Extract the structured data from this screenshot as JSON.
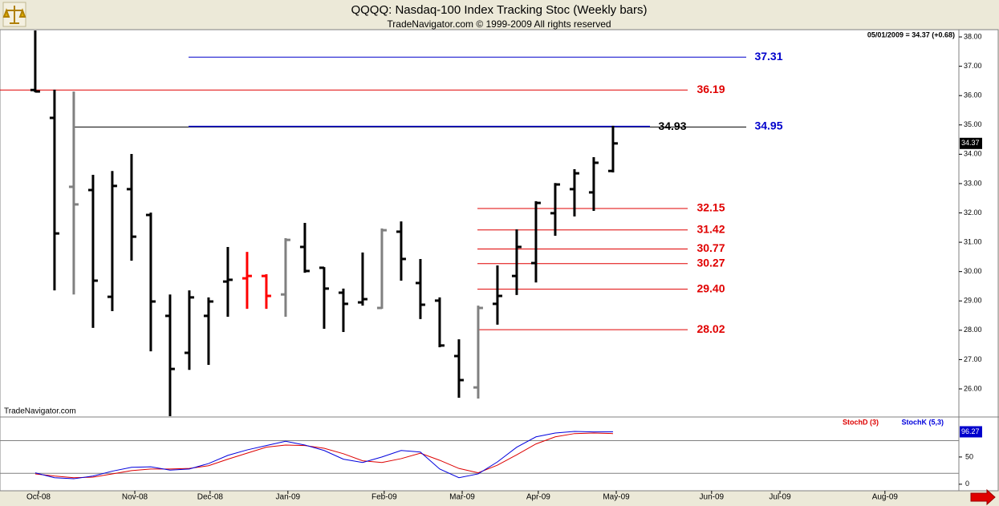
{
  "chart_data": [
    {
      "type": "ohlc",
      "title": "QQQQ:  Nasdaq-100 Index Tracking Stoc  (Weekly bars)",
      "subtitle": "TradeNavigator.com © 1999-2009 All rights reserved",
      "info": "05/01/2009 = 34.37 (+0.68)",
      "source": "TradeNavigator.com",
      "categories": [
        null,
        null,
        null,
        null,
        null,
        null,
        null,
        null,
        null,
        null,
        null,
        null,
        null,
        null,
        null,
        null,
        null,
        null,
        null,
        null,
        null,
        null,
        null,
        null,
        null,
        null,
        null,
        null,
        null,
        null,
        null
      ],
      "open": [
        36.19,
        35.24,
        32.89,
        32.78,
        29.14,
        32.81,
        31.93,
        28.49,
        27.23,
        28.49,
        29.66,
        29.77,
        29.85,
        29.22,
        30.84,
        30.13,
        29.28,
        28.95,
        28.76,
        31.36,
        29.61,
        29.01,
        27.12,
        26.05,
        28.9,
        29.85,
        30.29,
        31.99,
        32.81,
        32.7,
        33.43
      ],
      "high": [
        38.22,
        36.2,
        36.14,
        33.3,
        33.43,
        34.01,
        32.01,
        29.22,
        29.36,
        29.12,
        30.84,
        30.67,
        29.91,
        31.14,
        31.66,
        30.15,
        29.42,
        30.65,
        31.47,
        31.71,
        30.43,
        29.12,
        27.69,
        28.84,
        30.21,
        31.44,
        32.4,
        33.02,
        33.49,
        33.9,
        34.97
      ],
      "low": [
        36.11,
        29.36,
        29.22,
        28.08,
        28.65,
        30.37,
        27.28,
        25.07,
        26.65,
        26.82,
        28.46,
        28.73,
        28.73,
        28.46,
        29.96,
        28.05,
        27.94,
        28.84,
        28.73,
        29.69,
        28.38,
        27.42,
        25.7,
        25.67,
        28.19,
        29.2,
        29.63,
        31.22,
        31.88,
        32.07,
        33.38
      ],
      "close": [
        36.14,
        31.3,
        32.29,
        29.69,
        32.92,
        31.19,
        28.98,
        26.68,
        29.12,
        28.98,
        29.72,
        29.85,
        29.17,
        31.08,
        30.02,
        29.42,
        28.9,
        29.06,
        31.41,
        30.43,
        28.87,
        27.48,
        26.3,
        28.76,
        29.17,
        30.84,
        32.34,
        32.97,
        33.35,
        33.71,
        34.37
      ],
      "colors": [
        "#000000",
        "#000000",
        "#808080",
        "#000000",
        "#000000",
        "#000000",
        "#000000",
        "#000000",
        "#000000",
        "#000000",
        "#000000",
        "#ff0000",
        "#ff0000",
        "#808080",
        "#000000",
        "#000000",
        "#000000",
        "#000000",
        "#808080",
        "#000000",
        "#000000",
        "#000000",
        "#000000",
        "#808080",
        "#000000",
        "#000000",
        "#000000",
        "#000000",
        "#000000",
        "#000000",
        "#000000"
      ],
      "levels": [
        {
          "value": 37.31,
          "label": "37.31",
          "color": "#0000cc"
        },
        {
          "value": 36.19,
          "label": "36.19",
          "color": "#e00000"
        },
        {
          "value": 34.93,
          "label": "34.93",
          "color": "#000000"
        },
        {
          "value": 34.95,
          "label": "34.95",
          "color": "#0000cc"
        },
        {
          "value": 32.15,
          "label": "32.15",
          "color": "#e00000"
        },
        {
          "value": 31.42,
          "label": "31.42",
          "color": "#e00000"
        },
        {
          "value": 30.77,
          "label": "30.77",
          "color": "#e00000"
        },
        {
          "value": 30.27,
          "label": "30.27",
          "color": "#e00000"
        },
        {
          "value": 29.4,
          "label": "29.40",
          "color": "#e00000"
        },
        {
          "value": 28.02,
          "label": "28.02",
          "color": "#e00000"
        }
      ],
      "ylim": [
        25.07,
        38.22
      ],
      "yticks": [
        {
          "value": 26,
          "label": "26.00"
        },
        {
          "value": 27,
          "label": "27.00"
        },
        {
          "value": 28,
          "label": "28.00"
        },
        {
          "value": 29,
          "label": "29.00"
        },
        {
          "value": 30,
          "label": "30.00"
        },
        {
          "value": 31,
          "label": "31.00"
        },
        {
          "value": 32,
          "label": "32.00"
        },
        {
          "value": 33,
          "label": "33.00"
        },
        {
          "value": 34,
          "label": "34.00"
        },
        {
          "value": 35,
          "label": "35.00"
        },
        {
          "value": 36,
          "label": "36.00"
        },
        {
          "value": 37,
          "label": "37.00"
        },
        {
          "value": 38,
          "label": "38.00"
        }
      ]
    },
    {
      "type": "line",
      "categories": [
        null,
        null,
        null,
        null,
        null,
        null,
        null,
        null,
        null,
        null,
        null,
        null,
        null,
        null,
        null,
        null,
        null,
        null,
        null,
        null,
        null,
        null,
        null,
        null,
        null,
        null,
        null,
        null,
        null,
        null,
        null
      ],
      "series": [
        {
          "name": "StochD (3)",
          "color": "#dd0000",
          "values": [
            19,
            15,
            12,
            13,
            19,
            25,
            28,
            28,
            29,
            34,
            46,
            57,
            68,
            72,
            71,
            66,
            56,
            43,
            40,
            47,
            57,
            44,
            29,
            21,
            35,
            54,
            74,
            87,
            93,
            94,
            93
          ]
        },
        {
          "name": "StochK (5,3)",
          "color": "#0000dd",
          "values": [
            21,
            12,
            10,
            15,
            24,
            31,
            32,
            26,
            28,
            38,
            53,
            63,
            71,
            79,
            72,
            62,
            46,
            40,
            50,
            62,
            59,
            28,
            12,
            19,
            41,
            68,
            87,
            94,
            97,
            96,
            96.27
          ]
        }
      ],
      "hlines": [
        20,
        80
      ],
      "ylim": [
        -12,
        122
      ],
      "yticks": [
        0,
        50
      ],
      "xlim": [
        -1.83,
        47.96
      ],
      "xticks": [
        {
          "value": 0.17,
          "label": "Oct-08"
        },
        {
          "value": 5.17,
          "label": "Nov-08"
        },
        {
          "value": 9.08,
          "label": "Dec-08"
        },
        {
          "value": 13.12,
          "label": "Jan-09"
        },
        {
          "value": 18.12,
          "label": "Feb-09"
        },
        {
          "value": 22.17,
          "label": "Mar-09"
        },
        {
          "value": 26.12,
          "label": "Apr-09"
        },
        {
          "value": 30.17,
          "label": "May-09"
        },
        {
          "value": 35.12,
          "label": "Jun-09"
        },
        {
          "value": 38.67,
          "label": "Jul-09"
        },
        {
          "value": 44.12,
          "label": "Aug-09"
        }
      ]
    }
  ]
}
